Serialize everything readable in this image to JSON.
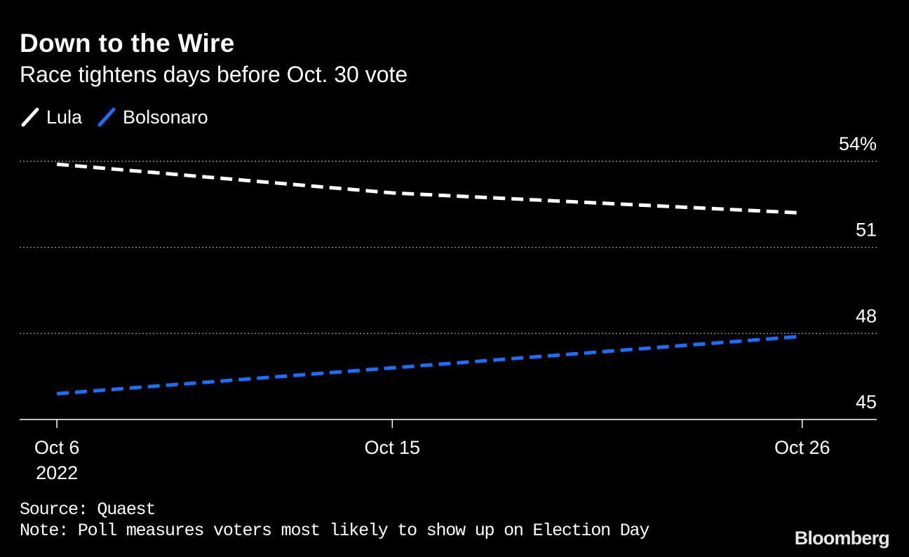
{
  "header": {
    "title": "Down to the Wire",
    "subtitle": "Race tightens days before Oct. 30 vote"
  },
  "legend": [
    {
      "label": "Lula",
      "color": "#ffffff"
    },
    {
      "label": "Bolsonaro",
      "color": "#1a6fff"
    }
  ],
  "footer": {
    "source": "Source: Quaest",
    "note": "Note: Poll measures voters most likely to show up on Election Day",
    "logo": "Bloomberg"
  },
  "chart_data": {
    "type": "line",
    "x": [
      "2022-10-06",
      "2022-10-15",
      "2022-10-26"
    ],
    "series": [
      {
        "name": "Lula",
        "values": [
          53.9,
          52.9,
          52.2
        ],
        "color": "#ffffff",
        "style": "dashed"
      },
      {
        "name": "Bolsonaro",
        "values": [
          45.9,
          46.8,
          47.9
        ],
        "color": "#1a6fff",
        "style": "dashed"
      }
    ],
    "x_ticks": [
      {
        "date": "2022-10-06",
        "label": "Oct 6",
        "sublabel": "2022"
      },
      {
        "date": "2022-10-15",
        "label": "Oct 15",
        "sublabel": ""
      },
      {
        "date": "2022-10-26",
        "label": "Oct 26",
        "sublabel": ""
      }
    ],
    "y_ticks": [
      {
        "value": 54,
        "label": "54%"
      },
      {
        "value": 51,
        "label": "51"
      },
      {
        "value": 48,
        "label": "48"
      },
      {
        "value": 45,
        "label": "45"
      }
    ],
    "ylim": [
      45,
      54
    ],
    "xlim": [
      "2022-10-05",
      "2022-10-28"
    ],
    "grid": "horizontal dotted",
    "legend_position": "top-left"
  }
}
